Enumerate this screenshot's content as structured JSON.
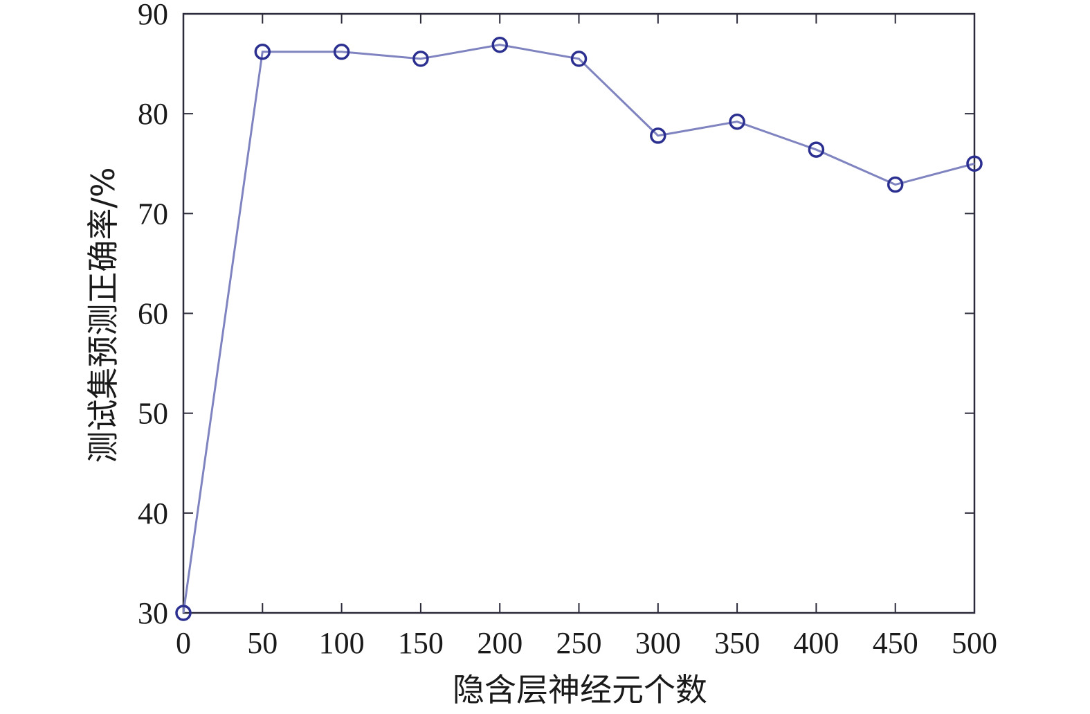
{
  "chart_data": {
    "type": "line",
    "title": "",
    "xlabel": "隐含层神经元个数",
    "ylabel": "测试集预测正确率/%",
    "xlim": [
      0,
      500
    ],
    "ylim": [
      30,
      90
    ],
    "xticks": [
      0,
      50,
      100,
      150,
      200,
      250,
      300,
      350,
      400,
      450,
      500
    ],
    "yticks": [
      30,
      40,
      50,
      60,
      70,
      80,
      90
    ],
    "grid": false,
    "legend": "none",
    "series": [
      {
        "color": "#2b2f8f",
        "line_color": "#7f84c0",
        "marker": "circle",
        "x": [
          0,
          50,
          100,
          150,
          200,
          250,
          300,
          350,
          400,
          450,
          500
        ],
        "y": [
          30.0,
          86.2,
          86.2,
          85.5,
          86.9,
          85.5,
          77.8,
          79.2,
          76.4,
          72.9,
          75.0
        ]
      }
    ]
  }
}
